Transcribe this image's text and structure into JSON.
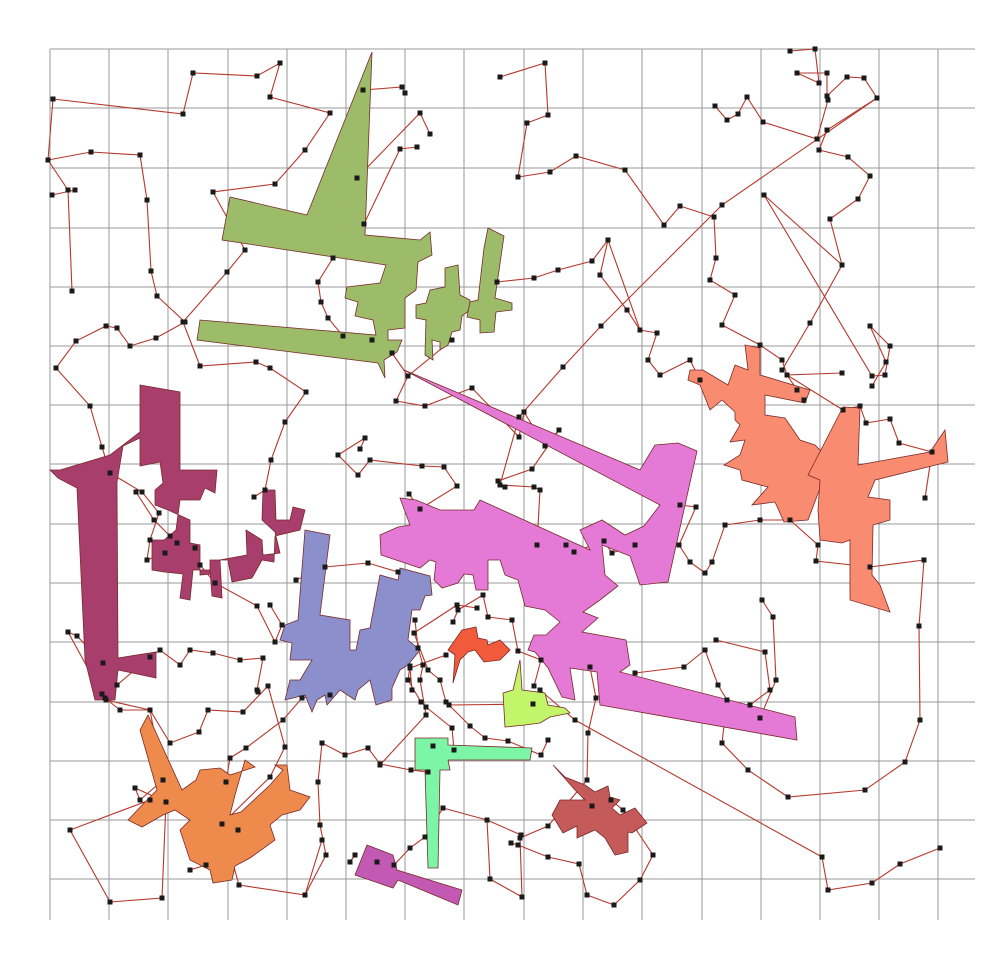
{
  "colors": {
    "background": "#ffffff",
    "grid": "#9a9a9a",
    "route": "#b5382c",
    "node": "#1a1a1a",
    "shape_olive": "#9cbc6a",
    "shape_magenta_light": "#e47ad6",
    "shape_salmon": "#f98b70",
    "shape_maroon": "#a83e6c",
    "shape_periwinkle": "#8b8fcc",
    "shape_orange_red": "#f25a3c",
    "shape_lime": "#c3f56a",
    "shape_orange": "#ee8a4c",
    "shape_mint": "#7cf5a6",
    "shape_brick": "#c45a5a",
    "shape_purple": "#c25ab4"
  },
  "shapes": [
    {
      "name": "olive-shape",
      "color_key": "shape_olive"
    },
    {
      "name": "magenta-shape",
      "color_key": "shape_magenta_light"
    },
    {
      "name": "salmon-shape",
      "color_key": "shape_salmon"
    },
    {
      "name": "maroon-shape",
      "color_key": "shape_maroon"
    },
    {
      "name": "periwinkle-shape",
      "color_key": "shape_periwinkle"
    },
    {
      "name": "orange-red-shape",
      "color_key": "shape_orange_red"
    },
    {
      "name": "lime-shape",
      "color_key": "shape_lime"
    },
    {
      "name": "orange-shape",
      "color_key": "shape_orange"
    },
    {
      "name": "mint-shape",
      "color_key": "shape_mint"
    },
    {
      "name": "brick-shape",
      "color_key": "shape_brick"
    },
    {
      "name": "purple-shape",
      "color_key": "shape_purple"
    }
  ]
}
